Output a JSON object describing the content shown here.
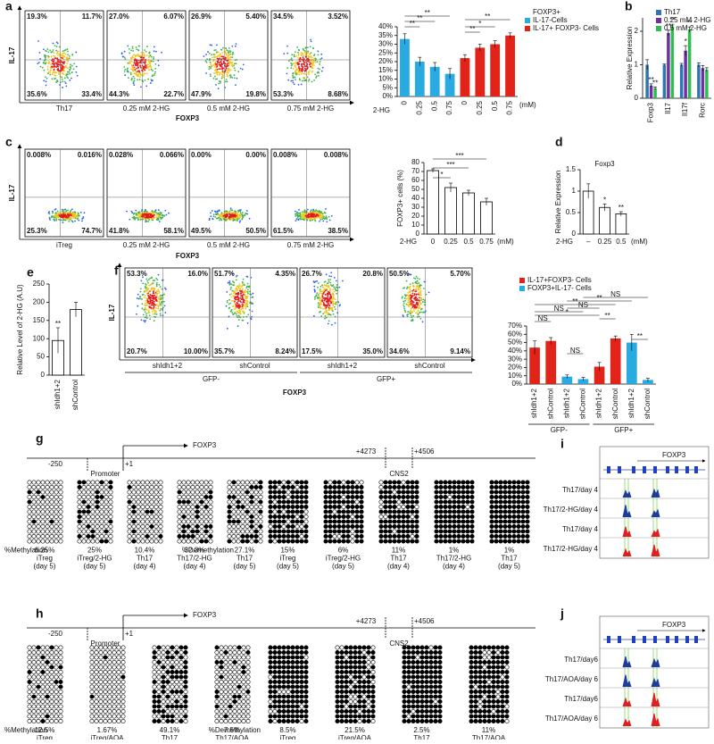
{
  "figure": {
    "a": {
      "label": "a",
      "flow": {
        "y_label": "IL-17",
        "x_label": "FOXP3",
        "plots": [
          {
            "name": "Th17",
            "quadrants": [
              "19.3%",
              "11.7%",
              "35.6%",
              "33.4%"
            ]
          },
          {
            "name": "0.25 mM 2-HG",
            "quadrants": [
              "27.0%",
              "6.07%",
              "44.3%",
              "22.7%"
            ]
          },
          {
            "name": "0.5 mM 2-HG",
            "quadrants": [
              "26.9%",
              "5.40%",
              "47.9%",
              "19.8%"
            ]
          },
          {
            "name": "0.75 mM 2-HG",
            "quadrants": [
              "34.5%",
              "3.52%",
              "53.3%",
              "8.68%"
            ]
          }
        ]
      },
      "bar": {
        "x_label": "2-HG",
        "unit": "(mM)",
        "legend_title": "FOXP3+",
        "categories": [
          "0",
          "0.25",
          "0.5",
          "0.75",
          "0",
          "0.25",
          "0.5",
          "0.75"
        ],
        "series": [
          {
            "name": "IL-17-Cells",
            "color": "#29abe2",
            "values": [
              33,
              20,
              17,
              13,
              null,
              null,
              null,
              null
            ],
            "errors": [
              3,
              2.5,
              2.5,
              3,
              null,
              null,
              null,
              null
            ]
          },
          {
            "name": "IL-17+ FOXP3- Cells",
            "color": "#e2231a",
            "values": [
              null,
              null,
              null,
              null,
              22,
              28,
              30,
              35
            ],
            "errors": [
              null,
              null,
              null,
              null,
              2,
              2,
              2,
              1.5
            ]
          }
        ],
        "ylim": [
          0,
          40
        ],
        "yticks": [
          {
            "value": 0,
            "label": "0%"
          },
          {
            "value": 5,
            "label": "5%"
          },
          {
            "value": 10,
            "label": "10%"
          },
          {
            "value": 15,
            "label": "15%"
          },
          {
            "value": 20,
            "label": "20%"
          },
          {
            "value": 25,
            "label": "25%"
          },
          {
            "value": 30,
            "label": "30%"
          },
          {
            "value": 35,
            "label": "35%"
          },
          {
            "value": 40,
            "label": "40%"
          }
        ],
        "significance": [
          "**",
          "**",
          "**",
          "**",
          "*",
          "**"
        ]
      }
    },
    "b": {
      "label": "b",
      "bar": {
        "y_label": "Relative Expression",
        "categories": [
          "Foxp3",
          "Il17",
          "Il17f",
          "Rorc"
        ],
        "series": [
          {
            "name": "Th17",
            "color": "#2e75b6",
            "values": [
              1,
              1,
              1,
              1
            ],
            "errors": [
              0.15,
              0.02,
              0.04,
              0.06
            ]
          },
          {
            "name": "0.25 mM 2-HG",
            "color": "#7030a0",
            "values": [
              0.38,
              1.95,
              1.42,
              0.9
            ],
            "errors": [
              0.05,
              0.08,
              0.15,
              0.08
            ]
          },
          {
            "name": "0.5 mM 2-HG",
            "color": "#2ebd4e",
            "values": [
              0.3,
              2.15,
              2.05,
              0.85
            ],
            "errors": [
              0.04,
              0.06,
              0.08,
              0.06
            ]
          }
        ],
        "ylim": [
          0,
          2.4
        ],
        "yticks": [
          0,
          1,
          2
        ],
        "significance": [
          "**",
          "**",
          "**",
          "**",
          "*",
          "**"
        ]
      }
    },
    "c": {
      "label": "c",
      "flow": {
        "y_label": "IL-17",
        "x_label": "FOXP3",
        "plots": [
          {
            "name": "iTreg",
            "quadrants": [
              "0.008%",
              "0.016%",
              "25.3%",
              "74.7%"
            ]
          },
          {
            "name": "0.25 mM 2-HG",
            "quadrants": [
              "0.028%",
              "0.066%",
              "41.8%",
              "58.1%"
            ]
          },
          {
            "name": "0.5 mM 2-HG",
            "quadrants": [
              "0.00%",
              "0.00%",
              "49.5%",
              "50.5%"
            ]
          },
          {
            "name": "0.75 mM 2-HG",
            "quadrants": [
              "0.008%",
              "0.008%",
              "61.5%",
              "38.5%"
            ]
          }
        ]
      },
      "bar": {
        "y_label": "FOXP3+ cells (%)",
        "x_label": "2-HG",
        "unit": "(mM)",
        "categories": [
          "0",
          "0.25",
          "0.5",
          "0.75"
        ],
        "values": [
          71,
          52,
          46,
          36
        ],
        "errors": [
          2,
          5,
          3,
          4
        ],
        "color": "#ffffff",
        "ylim": [
          0,
          80
        ],
        "yticks": [
          0,
          10,
          20,
          30,
          40,
          50,
          60,
          70,
          80
        ],
        "significance": [
          "*",
          "***",
          "***"
        ]
      }
    },
    "d": {
      "label": "d",
      "bar": {
        "title": "Foxp3",
        "y_label": "Relative Expression",
        "x_label": "2-HG",
        "unit": "(mM)",
        "categories": [
          "–",
          "0.25",
          "0.5"
        ],
        "values": [
          1,
          0.62,
          0.47
        ],
        "errors": [
          0.17,
          0.08,
          0.05
        ],
        "color": "#ffffff",
        "ylim": [
          0,
          1.5
        ],
        "yticks": [
          0,
          0.5,
          1,
          1.5
        ],
        "significance": [
          "*",
          "**"
        ]
      }
    },
    "e": {
      "label": "e",
      "bar": {
        "y_label": "Relative Level of 2-HG (A.U)",
        "categories": [
          "shIdh1+2",
          "shControl"
        ],
        "values": [
          95,
          180
        ],
        "errors": [
          35,
          20
        ],
        "color": "#ffffff",
        "ylim": [
          0,
          250
        ],
        "yticks": [
          0,
          50,
          100,
          150,
          200,
          250
        ],
        "significance": [
          "**"
        ]
      }
    },
    "f": {
      "label": "f",
      "flow": {
        "y_label": "IL-17",
        "x_label": "FOXP3",
        "groups": [
          "GFP-",
          "GFP+"
        ],
        "plots": [
          {
            "name": "shIdh1+2",
            "quadrants": [
              "53.3%",
              "16.0%",
              "20.7%",
              "10.00%"
            ]
          },
          {
            "name": "shControl",
            "quadrants": [
              "51.7%",
              "4.35%",
              "35.7%",
              "8.24%"
            ]
          },
          {
            "name": "shIdh1+2",
            "quadrants": [
              "26.7%",
              "20.8%",
              "17.5%",
              "35.0%"
            ]
          },
          {
            "name": "shControl",
            "quadrants": [
              "50.5%",
              "5.70%",
              "34.6%",
              "9.14%"
            ]
          }
        ]
      },
      "bar": {
        "groups": [
          "GFP-",
          "GFP+"
        ],
        "categories": [
          "shIdh1+2",
          "shControl",
          "shIdh1+2",
          "shControl",
          "shIdh1+2",
          "shControl",
          "shIdh1+2",
          "shControl"
        ],
        "series": [
          {
            "name": "IL-17+FOXP3- Cells",
            "color": "#e2231a",
            "values": [
              44,
              52,
              null,
              null,
              21,
              55,
              null,
              null
            ],
            "errors": [
              8,
              4,
              null,
              null,
              5,
              3,
              null,
              null
            ]
          },
          {
            "name": "FOXP3+IL-17- Cells",
            "color": "#29abe2",
            "values": [
              null,
              null,
              9,
              6,
              null,
              null,
              50,
              5
            ],
            "errors": [
              null,
              null,
              2,
              2,
              null,
              null,
              10,
              2
            ]
          }
        ],
        "ylim": [
          0,
          70
        ],
        "yticks": [
          {
            "value": 0,
            "label": "0%"
          },
          {
            "value": 10,
            "label": "10%"
          },
          {
            "value": 20,
            "label": "20%"
          },
          {
            "value": 30,
            "label": "30%"
          },
          {
            "value": 40,
            "label": "40%"
          },
          {
            "value": 50,
            "label": "50%"
          },
          {
            "value": 60,
            "label": "60%"
          },
          {
            "value": 70,
            "label": "70%"
          }
        ],
        "significance": [
          "NS",
          "**",
          "**",
          "NS",
          "NS",
          "*",
          "NS",
          "NS",
          "**",
          "**"
        ]
      }
    },
    "g": {
      "label": "g",
      "gene": "FOXP3",
      "promoter": "Promoter",
      "cns": "CNS2",
      "positions": [
        "-250",
        "+1",
        "+4273",
        "+4506"
      ],
      "promoter_metric": "%Methylation",
      "cns_metric": "%Demethylation",
      "promoter_samples": [
        {
          "pct": "6.25%",
          "lines": [
            "iTreg",
            "(day 5)"
          ]
        },
        {
          "pct": "25%",
          "lines": [
            "iTreg/2-HG",
            "(day 5)"
          ]
        },
        {
          "pct": "10.4%",
          "lines": [
            "Th17",
            "(day 4)"
          ]
        },
        {
          "pct": "32.3%",
          "lines": [
            "Th17/2-HG",
            "(day 4)"
          ]
        },
        {
          "pct": "27.1%",
          "lines": [
            "Th17",
            "(day 5)"
          ]
        }
      ],
      "cns_samples": [
        {
          "pct": "15%",
          "lines": [
            "iTreg",
            "(day 5)"
          ]
        },
        {
          "pct": "6%",
          "lines": [
            "iTreg/2-HG",
            "(day 5)"
          ]
        },
        {
          "pct": "11%",
          "lines": [
            "Th17",
            "(day 4)"
          ]
        },
        {
          "pct": "1%",
          "lines": [
            "Th17/2-HG",
            "(day 4)"
          ]
        },
        {
          "pct": "1%",
          "lines": [
            "Th17",
            "(day 5)"
          ]
        }
      ]
    },
    "h": {
      "label": "h",
      "gene": "FOXP3",
      "promoter": "Promoter",
      "cns": "CNS2",
      "positions": [
        "-250",
        "+1",
        "+4273",
        "+4506"
      ],
      "promoter_metric": "%Methylation",
      "cns_metric": "%Demethylation",
      "promoter_samples": [
        {
          "pct": "12.5%",
          "lines": [
            "iTreg"
          ]
        },
        {
          "pct": "1.67%",
          "lines": [
            "iTreg/AOA"
          ]
        },
        {
          "pct": "49.1%",
          "lines": [
            "Th17"
          ]
        },
        {
          "pct": "7.5%",
          "lines": [
            "Th17/AOA"
          ]
        }
      ],
      "cns_samples": [
        {
          "pct": "8.5%",
          "lines": [
            "iTreg"
          ]
        },
        {
          "pct": "21.5%",
          "lines": [
            "iTreg/AOA"
          ]
        },
        {
          "pct": "2.5%",
          "lines": [
            "Th17"
          ]
        },
        {
          "pct": "11%",
          "lines": [
            "Th17/AOA"
          ]
        }
      ]
    },
    "i": {
      "label": "i",
      "gene": "FOXP3",
      "tracks": [
        "Th17/day 4",
        "Th17/2-HG/day 4",
        "Th17/day 4",
        "Th17/2-HG/day 4"
      ]
    },
    "j": {
      "label": "j",
      "gene": "FOXP3",
      "tracks": [
        "Th17/day6",
        "Th17/AOA/day 6",
        "Th17/day6",
        "Th17/AOA/day 6"
      ]
    }
  }
}
